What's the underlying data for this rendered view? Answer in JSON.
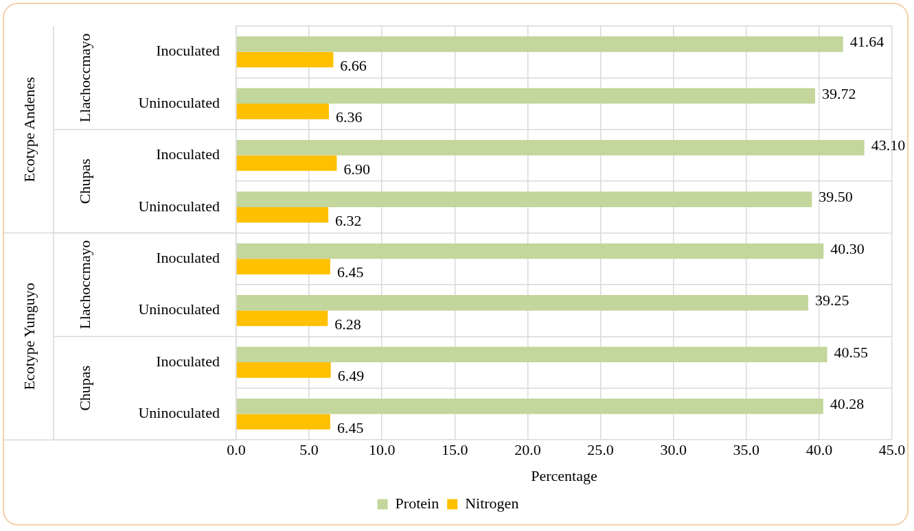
{
  "chart_data": {
    "type": "bar",
    "orientation": "horizontal",
    "categories": [
      "Inoculated",
      "Uninoculated",
      "Inoculated",
      "Uninoculated",
      "Inoculated",
      "Uninoculated",
      "Inoculated",
      "Uninoculated"
    ],
    "series": [
      {
        "name": "Protein",
        "color": "#c3d69b",
        "values": [
          41.64,
          39.72,
          43.1,
          39.5,
          40.3,
          39.25,
          40.55,
          40.28
        ],
        "value_labels": [
          "41.64",
          "39.72",
          "43.10",
          "39.50",
          "40.30",
          "39.25",
          "40.55",
          "40.28"
        ]
      },
      {
        "name": "Nitrogen",
        "color": "#ffc000",
        "values": [
          6.66,
          6.36,
          6.9,
          6.32,
          6.45,
          6.28,
          6.49,
          6.45
        ],
        "value_labels": [
          "6.66",
          "6.36",
          "6.90",
          "6.32",
          "6.45",
          "6.28",
          "6.49",
          "6.45"
        ]
      }
    ],
    "xlim": [
      0,
      45
    ],
    "xticks": [
      {
        "value": 0,
        "label": "0.0"
      },
      {
        "value": 5,
        "label": "5.0"
      },
      {
        "value": 10,
        "label": "10.0"
      },
      {
        "value": 15,
        "label": "15.0"
      },
      {
        "value": 20,
        "label": "20.0"
      },
      {
        "value": 25,
        "label": "25.0"
      },
      {
        "value": 30,
        "label": "30.0"
      },
      {
        "value": 35,
        "label": "35.0"
      },
      {
        "value": 40,
        "label": "40.0"
      },
      {
        "value": 45,
        "label": "45.0"
      }
    ],
    "xlabel": "Percentage",
    "annotations": [
      "Ecotype Andenes",
      "Ecotype Yunguyo",
      "Llachoccmayo",
      "Chupas",
      "Llachoccmayo",
      "Chupas"
    ],
    "grid": true,
    "legend": "bottom"
  }
}
